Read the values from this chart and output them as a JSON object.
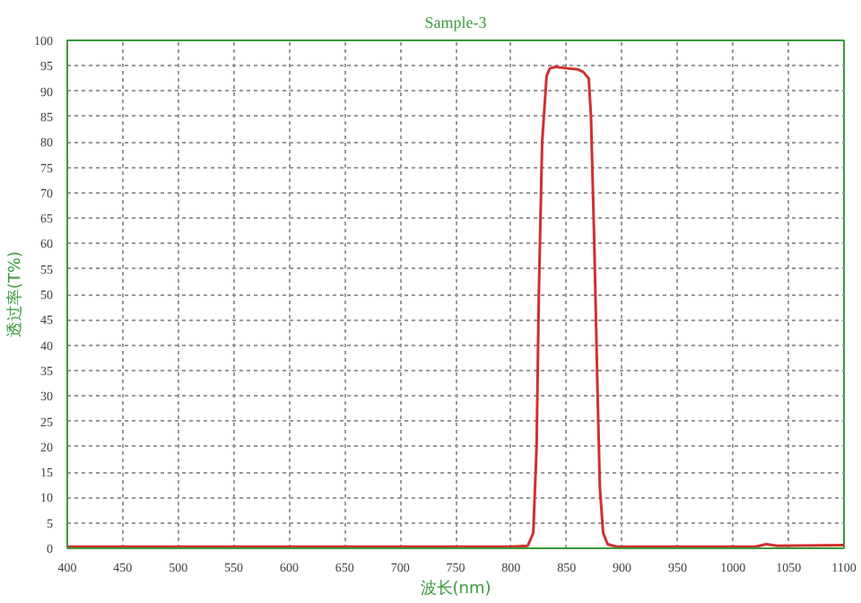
{
  "chart_data": {
    "type": "line",
    "title": "Sample-3",
    "xlabel": "波长(nm)",
    "ylabel": "透过率(T%)",
    "xlim": [
      400,
      1100
    ],
    "xticks": [
      400,
      450,
      500,
      550,
      600,
      650,
      700,
      750,
      800,
      850,
      900,
      950,
      1000,
      1050,
      1100
    ],
    "ylim": [
      0,
      100
    ],
    "yticks": [
      0,
      5,
      10,
      15,
      20,
      25,
      30,
      35,
      40,
      45,
      50,
      55,
      60,
      65,
      70,
      75,
      80,
      85,
      90,
      95,
      100
    ],
    "grid": true,
    "line_style": "solid",
    "series": [
      {
        "color": "#d03030",
        "x": [
          400,
          600,
          800,
          815,
          820,
          823,
          825,
          828,
          832,
          835,
          840,
          850,
          860,
          865,
          870,
          872,
          875,
          878,
          880,
          883,
          887,
          895,
          1000,
          1020,
          1030,
          1040,
          1100
        ],
        "values": [
          0.3,
          0.3,
          0.3,
          0.5,
          3,
          20,
          50,
          80,
          93,
          94.5,
          94.8,
          94.5,
          94.3,
          93.8,
          92.5,
          85,
          60,
          30,
          12,
          3,
          0.8,
          0.3,
          0.3,
          0.3,
          0.8,
          0.5,
          0.6
        ]
      }
    ]
  }
}
